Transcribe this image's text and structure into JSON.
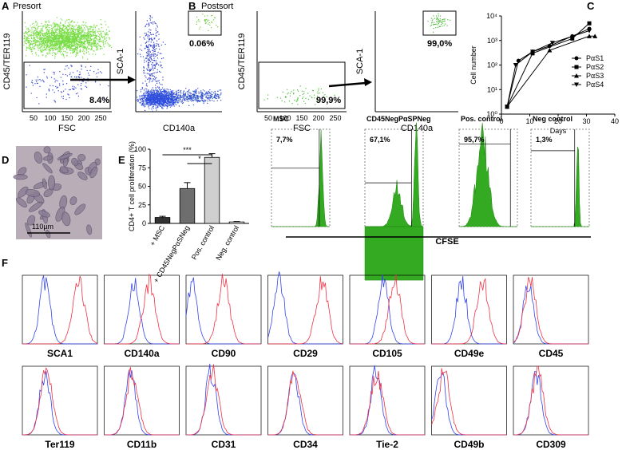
{
  "figure": {
    "panel_labels": [
      "A",
      "B",
      "C",
      "D",
      "E",
      "F"
    ],
    "A": {
      "title": "Presort",
      "plot1": {
        "ylabel": "CD45/TER119",
        "xlabel": "FSC",
        "gate_label": "8.4%"
      },
      "plot2": {
        "ylabel": "SCA-1",
        "xlabel": "CD140a",
        "gate_label": "0.06%"
      }
    },
    "B": {
      "title": "Postsort",
      "plot1": {
        "ylabel": "CD45/TER119",
        "xlabel": "FSC",
        "gate_label": "99,9%"
      },
      "plot2": {
        "ylabel": "SCA-1",
        "xlabel": "CD140a",
        "gate_label": "99,0%"
      }
    },
    "fsc_ticks": [
      "50",
      "100",
      "150",
      "200",
      "250"
    ],
    "D": {
      "scale_bar": "110µm"
    },
    "E_flow": {
      "panels": [
        {
          "title": "MSC",
          "gate_label": "7,7%"
        },
        {
          "title": "CD45NegPαSPNeg",
          "gate_label": "67,1%"
        },
        {
          "title": "Pos. control",
          "gate_label": "95,7%"
        },
        {
          "title": "Neg control",
          "gate_label": "1,3%"
        }
      ],
      "xlabel": "CFSE"
    },
    "F": {
      "markers": [
        "SCA1",
        "CD140a",
        "CD90",
        "CD29",
        "CD105",
        "CD49e",
        "CD45",
        "Ter119",
        "CD11b",
        "CD31",
        "CD34",
        "Tie-2",
        "CD49b",
        "CD309"
      ]
    }
  },
  "chart_data": [
    {
      "type": "line",
      "xlabel": "Days",
      "ylabel": "Cell number",
      "log_y": true,
      "xlim": [
        0,
        40
      ],
      "xticks": [
        0,
        10,
        20,
        30,
        40
      ],
      "ylim": [
        1,
        10000
      ],
      "yticks": [
        {
          "value": 1,
          "label": "10⁰"
        },
        {
          "value": 10,
          "label": "10¹"
        },
        {
          "value": 100,
          "label": "10²"
        },
        {
          "value": 1000,
          "label": "10³"
        },
        {
          "value": 10000,
          "label": "10⁴"
        }
      ],
      "series": [
        {
          "name": "PαS1",
          "color": "#000000",
          "marker": "circle",
          "x": [
            2,
            6,
            11,
            17,
            25,
            31
          ],
          "values": [
            2,
            150,
            350,
            600,
            1500,
            3000
          ]
        },
        {
          "name": "PαS2",
          "color": "#000000",
          "marker": "square",
          "x": [
            2,
            11,
            25,
            31
          ],
          "values": [
            2,
            300,
            1200,
            5000
          ]
        },
        {
          "name": "PαS3",
          "color": "#000000",
          "marker": "triangle-up",
          "x": [
            2,
            17,
            31,
            33
          ],
          "values": [
            2,
            400,
            1500,
            1500
          ]
        },
        {
          "name": "PαS4",
          "color": "#000000",
          "marker": "triangle-down",
          "x": [
            2,
            5,
            11,
            18,
            31
          ],
          "values": [
            2,
            100,
            350,
            800,
            2500
          ]
        }
      ]
    },
    {
      "type": "bar",
      "ylabel": "CD4+ T cell proliferation (%)",
      "categories": [
        "+ MSC",
        "+ CD45NegPαSNeg",
        "Pos. control",
        "Neg. control"
      ],
      "values": [
        8,
        47,
        89,
        2
      ],
      "errors": [
        1.5,
        8,
        5,
        0.5
      ],
      "colors": [
        "#333333",
        "#6e6e6e",
        "#cfcfcf",
        "#ffffff"
      ],
      "ylim": [
        0,
        100
      ],
      "yticks": [
        0,
        25,
        50,
        75,
        100
      ],
      "annotations": [
        "***",
        "*"
      ]
    }
  ]
}
